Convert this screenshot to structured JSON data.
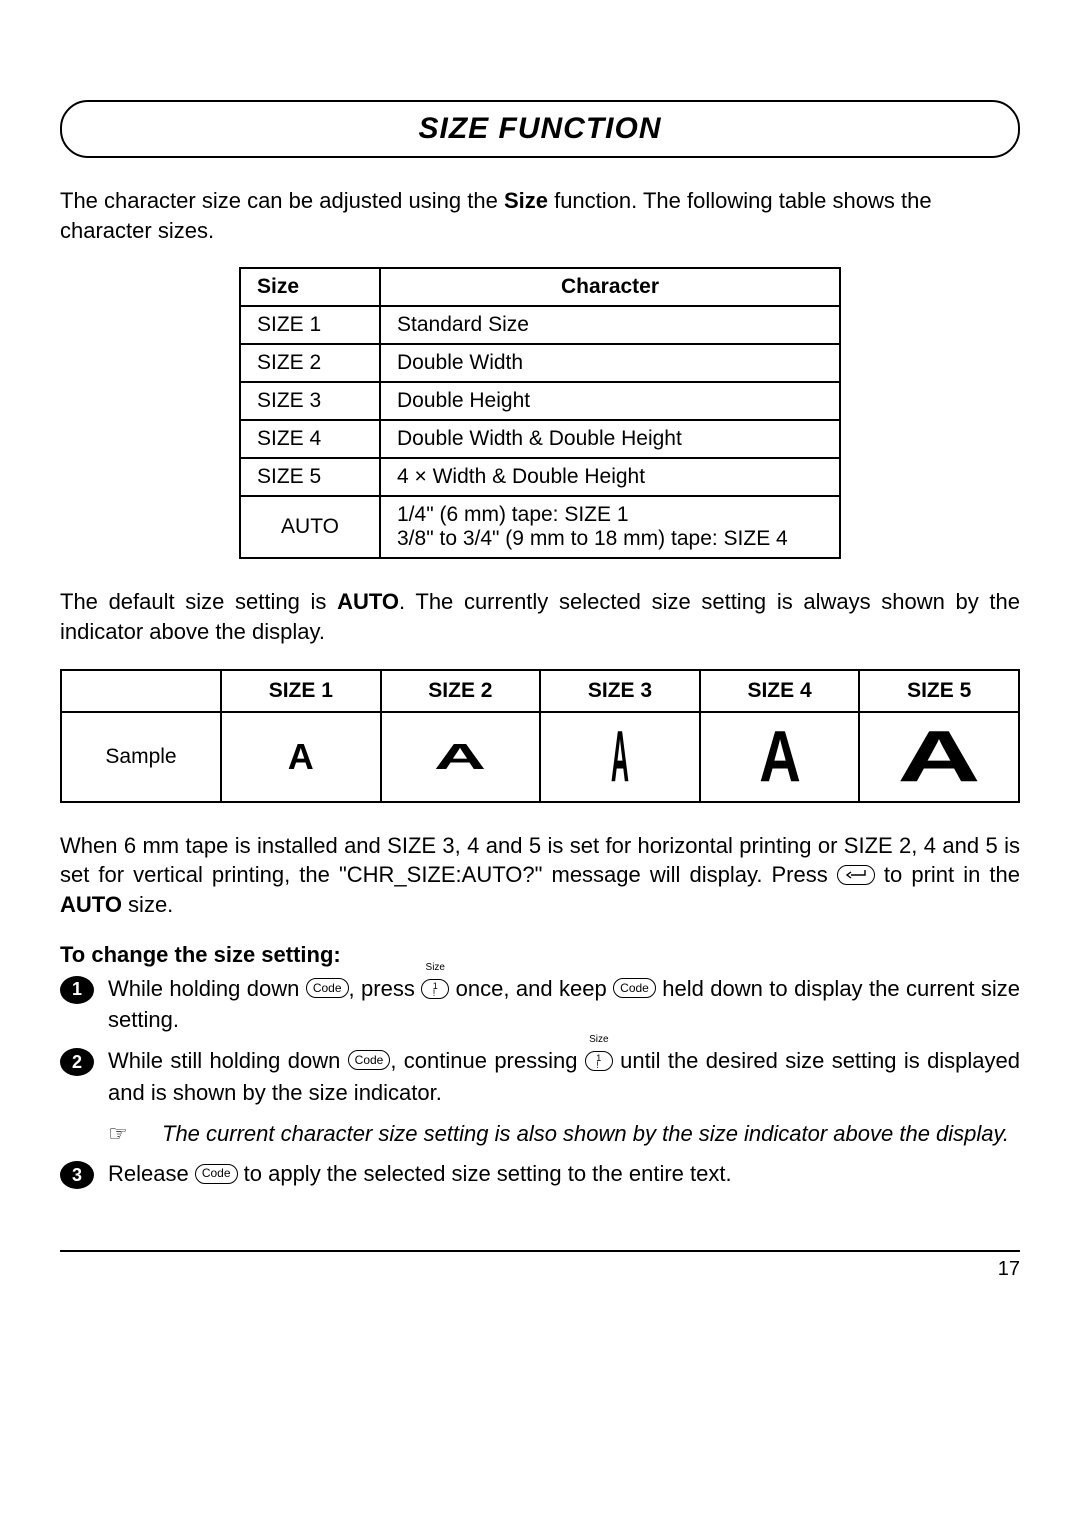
{
  "title": "SIZE FUNCTION",
  "intro_pre": "The character size can be adjusted using the ",
  "intro_bold": "Size",
  "intro_post": " function. The following table shows the character sizes.",
  "size_table": {
    "headers": [
      "Size",
      "Character"
    ],
    "rows": [
      [
        "SIZE 1",
        "Standard Size"
      ],
      [
        "SIZE 2",
        "Double Width"
      ],
      [
        "SIZE 3",
        "Double Height"
      ],
      [
        "SIZE 4",
        "Double Width & Double Height"
      ],
      [
        "SIZE 5",
        "4 × Width & Double Height"
      ],
      [
        "AUTO",
        "1/4\" (6 mm) tape: SIZE 1\n3/8\" to 3/4\" (9 mm to 18 mm) tape: SIZE 4"
      ]
    ]
  },
  "default_para_pre": "The default size setting is ",
  "default_para_bold": "AUTO",
  "default_para_post": ". The currently selected size setting is always shown by the indicator above the display.",
  "sample_table": {
    "corner": "",
    "columns": [
      "SIZE 1",
      "SIZE 2",
      "SIZE 3",
      "SIZE 4",
      "SIZE 5"
    ],
    "row_label": "Sample",
    "glyph": "A",
    "styles": [
      {
        "fontSize": 36,
        "scaleX": 1.0,
        "scaleY": 1.0
      },
      {
        "fontSize": 36,
        "scaleX": 2.0,
        "scaleY": 1.0
      },
      {
        "fontSize": 36,
        "scaleX": 0.7,
        "scaleY": 2.0
      },
      {
        "fontSize": 36,
        "scaleX": 1.6,
        "scaleY": 2.0
      },
      {
        "fontSize": 36,
        "scaleX": 3.2,
        "scaleY": 2.0
      }
    ]
  },
  "tape_para_1": "When 6 mm tape is installed and SIZE 3, 4 and 5 is set for horizontal printing or SIZE 2, 4 and 5 is set for vertical printing, the \"CHR_SIZE:AUTO?\" message will display. Press ",
  "tape_para_2": " to print in the ",
  "tape_para_bold": "AUTO",
  "tape_para_3": " size.",
  "instr_heading": "To change the size setting:",
  "key_labels": {
    "code": "Code",
    "one": "1\n!",
    "one_super": "Size"
  },
  "steps": {
    "s1a": "While holding down ",
    "s1b": ", press ",
    "s1c": " once, and keep ",
    "s1d": " held down to display the current size setting.",
    "s2a": "While still holding down ",
    "s2b": ", continue pressing ",
    "s2c": " until the desired size setting is displayed and is shown by the size indicator.",
    "note": "The current character size setting is also shown by the size indicator above the display.",
    "s3a": "Release ",
    "s3b": " to apply the selected size setting to the entire text."
  },
  "note_icon": "☞",
  "page_number": "17",
  "colors": {
    "text": "#000000",
    "background": "#ffffff",
    "border": "#000000"
  }
}
